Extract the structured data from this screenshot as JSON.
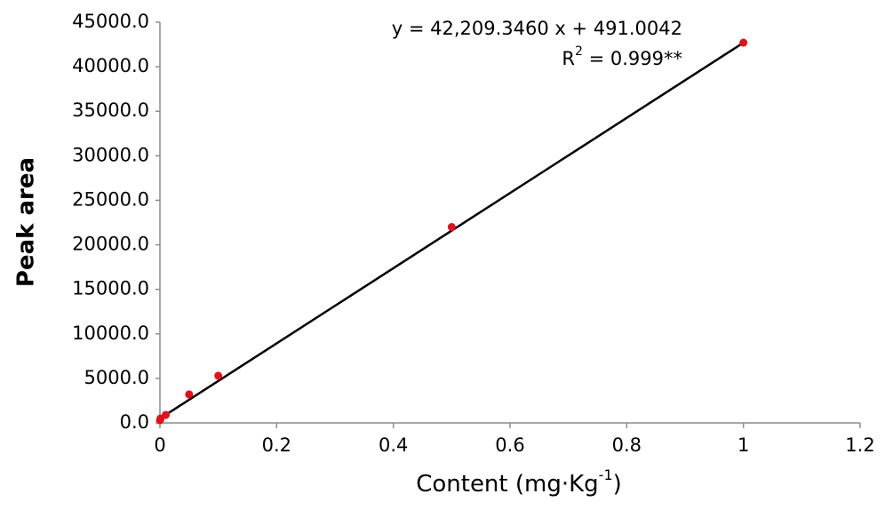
{
  "chart_data": {
    "type": "scatter",
    "x_label": {
      "text": "Content (mg·Kg",
      "sup": "-1",
      "end": ")"
    },
    "y_label": "Peak area",
    "equation": "y = 42,209.3460 x + 491.0042",
    "r_squared": {
      "base": "R",
      "sup": "2",
      "rest": " = 0.999**"
    },
    "series": [
      {
        "name": "Peak area",
        "color": "#e3101c",
        "x": [
          0,
          0.001,
          0.01,
          0.05,
          0.1,
          0.5,
          1
        ],
        "values": [
          300,
          500,
          900,
          3200,
          5300,
          22000,
          42700
        ]
      }
    ],
    "trendline": {
      "slope": 42209.346,
      "intercept": 491.0042,
      "color": "#000000"
    },
    "xlim": [
      0,
      1.2
    ],
    "xticks": [
      0,
      0.2,
      0.4,
      0.6,
      0.8,
      1,
      1.2
    ],
    "ylim": [
      0,
      45000
    ],
    "yticks": [
      {
        "value": 0,
        "label": "0.0"
      },
      {
        "value": 5000,
        "label": "5000.0"
      },
      {
        "value": 10000,
        "label": "10000.0"
      },
      {
        "value": 15000,
        "label": "15000.0"
      },
      {
        "value": 20000,
        "label": "20000.0"
      },
      {
        "value": 25000,
        "label": "25000.0"
      },
      {
        "value": 30000,
        "label": "30000.0"
      },
      {
        "value": 35000,
        "label": "35000.0"
      },
      {
        "value": 40000,
        "label": "40000.0"
      },
      {
        "value": 45000,
        "label": "45000.0"
      }
    ],
    "grid": false
  }
}
